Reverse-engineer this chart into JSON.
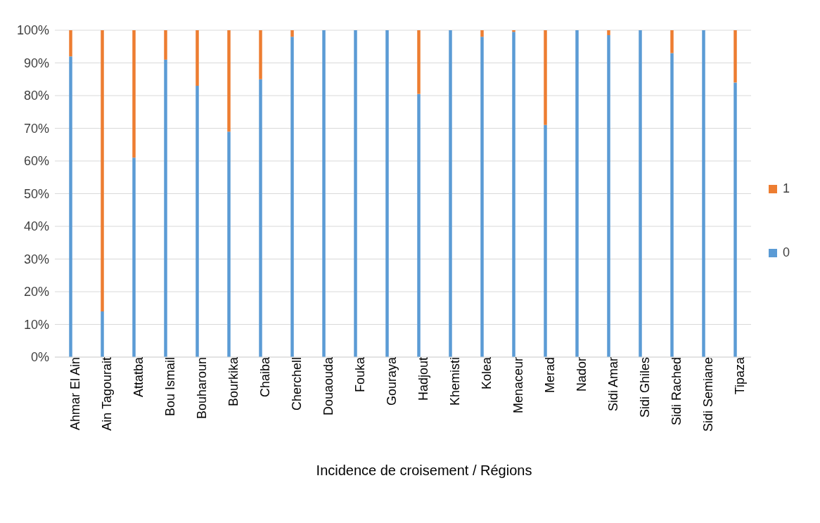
{
  "chart_data": {
    "type": "bar",
    "stacked": true,
    "xlabel": "Incidence de croisement / Régions",
    "categories": [
      "Ahmar El Ain",
      "Ain Tagourait",
      "Attatba",
      "Bou Ismail",
      "Bouharoun",
      "Bourkika",
      "Chaiba",
      "Cherchell",
      "Douaouda",
      "Fouka",
      "Gouraya",
      "Hadjout",
      "Khemisti",
      "Kolea",
      "Menaceur",
      "Merad",
      "Nador",
      "Sidi Amar",
      "Sidi Ghiles",
      "Sidi Rached",
      "Sidi Semiane",
      "Tipaza"
    ],
    "series": [
      {
        "name": "0",
        "color": "#5b9bd5",
        "values": [
          92,
          14,
          61,
          91,
          83,
          69,
          85,
          98,
          100,
          100,
          100,
          80.5,
          100,
          98,
          99.5,
          71,
          100,
          98.5,
          100,
          93,
          100,
          84
        ]
      },
      {
        "name": "1",
        "color": "#ed7d31",
        "values": [
          8,
          86,
          39,
          9,
          17,
          31,
          15,
          2,
          0,
          0,
          0,
          19.5,
          0,
          2,
          0.5,
          29,
          0,
          1.5,
          0,
          7,
          0,
          16
        ]
      }
    ],
    "ylim": [
      0,
      100
    ],
    "yticks": [
      {
        "value": 0,
        "label": "0%"
      },
      {
        "value": 10,
        "label": "10%"
      },
      {
        "value": 20,
        "label": "20%"
      },
      {
        "value": 30,
        "label": "30%"
      },
      {
        "value": 40,
        "label": "40%"
      },
      {
        "value": 50,
        "label": "50%"
      },
      {
        "value": 60,
        "label": "60%"
      },
      {
        "value": 70,
        "label": "70%"
      },
      {
        "value": 80,
        "label": "80%"
      },
      {
        "value": 90,
        "label": "90%"
      },
      {
        "value": 100,
        "label": "100%"
      }
    ],
    "grid": "y",
    "legend": "right"
  }
}
